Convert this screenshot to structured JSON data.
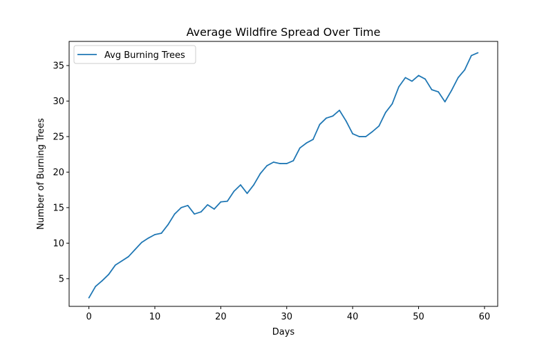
{
  "chart_data": {
    "type": "line",
    "title": "Average Wildfire Spread Over Time",
    "xlabel": "Days",
    "ylabel": "Number of Burning Trees",
    "xlim": [
      -3,
      62
    ],
    "ylim": [
      1.1,
      38.4
    ],
    "xticks": [
      0,
      10,
      20,
      30,
      40,
      50,
      60
    ],
    "yticks": [
      5,
      10,
      15,
      20,
      25,
      30,
      35
    ],
    "grid": false,
    "legend_position": "upper-left",
    "series": [
      {
        "name": "Avg Burning Trees",
        "color": "#1f77b4",
        "x": [
          0,
          1,
          2,
          3,
          4,
          5,
          6,
          7,
          8,
          9,
          10,
          11,
          12,
          13,
          14,
          15,
          16,
          17,
          18,
          19,
          20,
          21,
          22,
          23,
          24,
          25,
          26,
          27,
          28,
          29,
          30,
          31,
          32,
          33,
          34,
          35,
          36,
          37,
          38,
          39,
          40,
          41,
          42,
          43,
          44,
          45,
          46,
          47,
          48,
          49,
          50,
          51,
          52,
          53,
          54,
          55,
          56,
          57,
          58,
          59
        ],
        "y": [
          2.3,
          3.9,
          4.7,
          5.6,
          6.9,
          7.5,
          8.1,
          9.1,
          10.1,
          10.7,
          11.2,
          11.4,
          12.6,
          14.1,
          15.0,
          15.3,
          14.1,
          14.4,
          15.4,
          14.8,
          15.8,
          15.9,
          17.3,
          18.2,
          17.0,
          18.2,
          19.8,
          20.9,
          21.4,
          21.2,
          21.2,
          21.6,
          23.4,
          24.1,
          24.6,
          26.7,
          27.6,
          27.9,
          28.7,
          27.2,
          25.4,
          25.0,
          25.0,
          25.7,
          26.5,
          28.4,
          29.6,
          32.0,
          33.3,
          32.8,
          33.6,
          33.1,
          31.6,
          31.3,
          29.9,
          31.5,
          33.3,
          34.4,
          36.4,
          36.8
        ]
      }
    ]
  }
}
